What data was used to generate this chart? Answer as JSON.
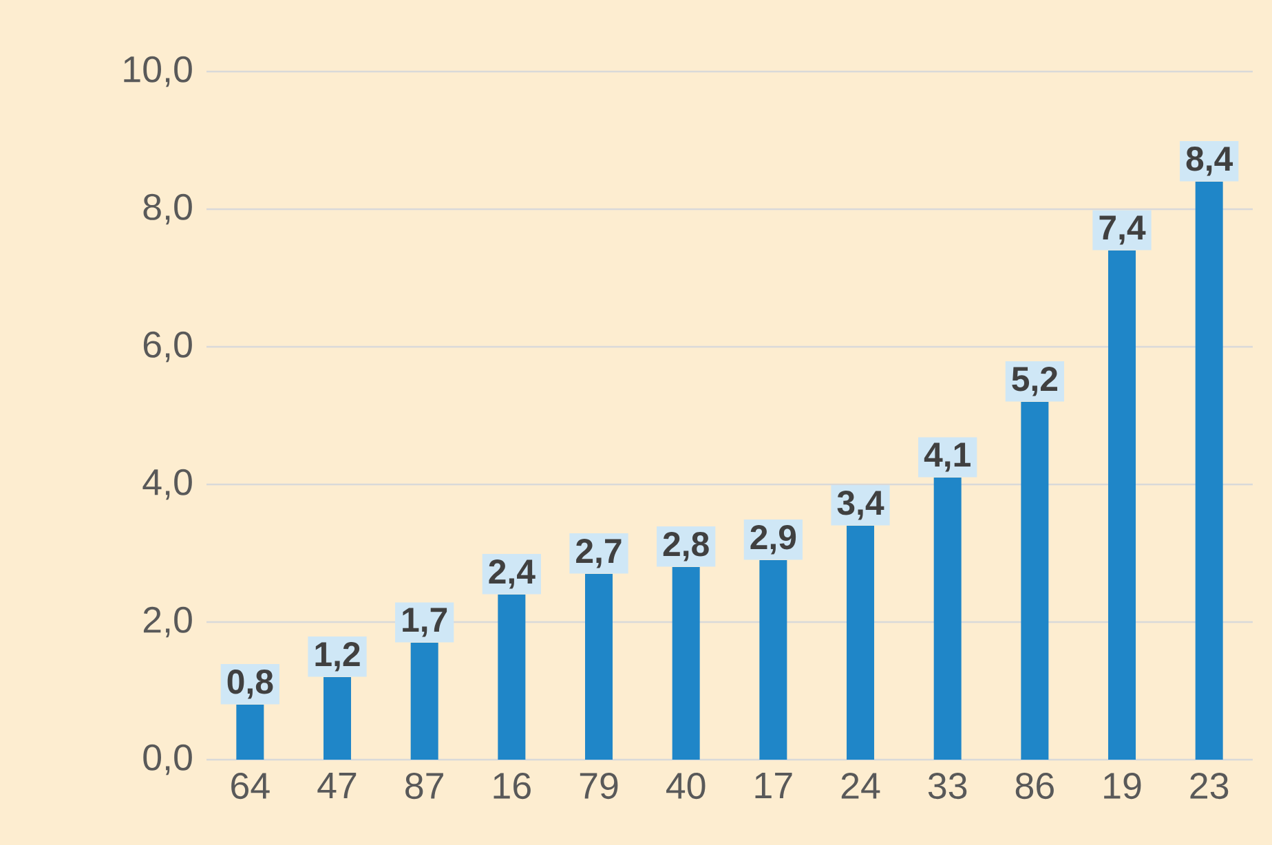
{
  "chart_data": {
    "type": "bar",
    "categories": [
      "64",
      "47",
      "87",
      "16",
      "79",
      "40",
      "17",
      "24",
      "33",
      "86",
      "19",
      "23"
    ],
    "values": [
      0.8,
      1.2,
      1.7,
      2.4,
      2.7,
      2.8,
      2.9,
      3.4,
      4.1,
      5.2,
      7.4,
      8.4
    ],
    "value_labels": [
      "0,8",
      "1,2",
      "1,7",
      "2,4",
      "2,7",
      "2,8",
      "2,9",
      "3,4",
      "4,1",
      "5,2",
      "7,4",
      "8,4"
    ],
    "color": "#1f86c8",
    "ylim": [
      0,
      10
    ],
    "yticks": [
      {
        "value": 0,
        "label": "0,0"
      },
      {
        "value": 2,
        "label": "2,0"
      },
      {
        "value": 4,
        "label": "4,0"
      },
      {
        "value": 6,
        "label": "6,0"
      },
      {
        "value": 8,
        "label": "8,0"
      },
      {
        "value": 10,
        "label": "10,0"
      }
    ],
    "grid": "y"
  }
}
